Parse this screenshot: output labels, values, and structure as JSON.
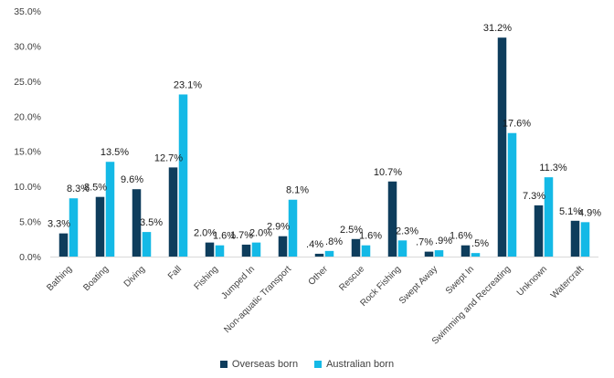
{
  "chart_data": {
    "type": "bar",
    "categories": [
      "Bathing",
      "Boating",
      "Diving",
      "Fall",
      "Fishing",
      "Jumped In",
      "Non-aquatic Transport",
      "Other",
      "Rescue",
      "Rock Fishing",
      "Swept Away",
      "Swept In",
      "Swimming and Recreating",
      "Unknown",
      "Watercraft"
    ],
    "series": [
      {
        "name": "Overseas born",
        "color": "#0e3d5c",
        "values": [
          3.3,
          8.5,
          9.6,
          12.7,
          2.0,
          1.7,
          2.9,
          0.4,
          2.5,
          10.7,
          0.7,
          1.6,
          31.2,
          7.3,
          5.1
        ],
        "labels": [
          "3.3%",
          "8.5%",
          "9.6%",
          "12.7%",
          "2.0%",
          "1.7%",
          "2.9%",
          ".4%",
          "2.5%",
          "10.7%",
          ".7%",
          "1.6%",
          "31.2%",
          "7.3%",
          "5.1%"
        ]
      },
      {
        "name": "Australian born",
        "color": "#14b9e6",
        "values": [
          8.3,
          13.5,
          3.5,
          23.1,
          1.6,
          2.0,
          8.1,
          0.8,
          1.6,
          2.3,
          0.9,
          0.5,
          17.6,
          11.3,
          4.9
        ],
        "labels": [
          "8.3%",
          "13.5%",
          "3.5%",
          "23.1%",
          "1.6%",
          "2.0%",
          "8.1%",
          ".8%",
          "1.6%",
          "2.3%",
          ".9%",
          ".5%",
          "17.6%",
          "11.3%",
          "4.9%"
        ]
      }
    ],
    "yticks": [
      0,
      5,
      10,
      15,
      20,
      25,
      30,
      35
    ],
    "ytick_labels": [
      "0.0%",
      "5.0%",
      "10.0%",
      "15.0%",
      "20.0%",
      "25.0%",
      "30.0%",
      "35.0%"
    ],
    "ylim": [
      0,
      35
    ],
    "grid": false,
    "legend_position": "bottom"
  }
}
